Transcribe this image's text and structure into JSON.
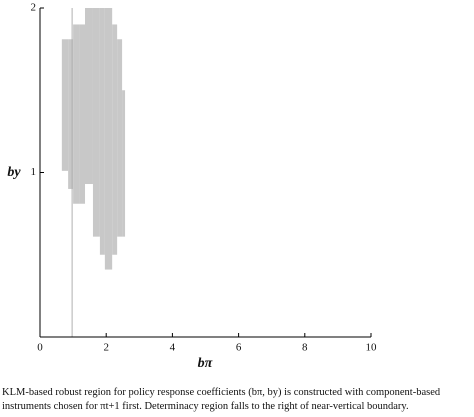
{
  "chart_data": {
    "type": "region",
    "xlabel": "bπ",
    "ylabel": "by",
    "xlim": [
      0,
      10
    ],
    "xticks": [
      0,
      2,
      4,
      6,
      8,
      10
    ],
    "ylim": [
      0,
      2
    ],
    "yticks": [
      1,
      2
    ],
    "color": "#c8c8c8",
    "boundary_x": 0.97,
    "boundary_color": "#b0b0b0",
    "region": [
      {
        "x": [
          0.66,
          0.85
        ],
        "y": [
          1.01,
          1.81
        ]
      },
      {
        "x": [
          0.85,
          1.0
        ],
        "y": [
          0.9,
          1.81
        ]
      },
      {
        "x": [
          1.0,
          1.18
        ],
        "y": [
          0.81,
          1.9
        ]
      },
      {
        "x": [
          1.18,
          1.36
        ],
        "y": [
          0.81,
          1.9
        ]
      },
      {
        "x": [
          1.36,
          1.6
        ],
        "y": [
          0.93,
          2.0
        ]
      },
      {
        "x": [
          1.6,
          1.81
        ],
        "y": [
          0.61,
          2.0
        ]
      },
      {
        "x": [
          1.81,
          1.96
        ],
        "y": [
          0.5,
          2.0
        ]
      },
      {
        "x": [
          1.96,
          2.18
        ],
        "y": [
          0.41,
          2.0
        ]
      },
      {
        "x": [
          2.18,
          2.33
        ],
        "y": [
          0.5,
          1.9
        ]
      },
      {
        "x": [
          2.33,
          2.48
        ],
        "y": [
          0.61,
          1.81
        ]
      },
      {
        "x": [
          2.48,
          2.57
        ],
        "y": [
          0.61,
          1.5
        ]
      }
    ]
  },
  "caption": "KLM-based robust region for policy response coefficients (bπ, by) is constructed with component-based instruments chosen for πt+1 first. Determinacy region falls to the right of near-vertical boundary."
}
